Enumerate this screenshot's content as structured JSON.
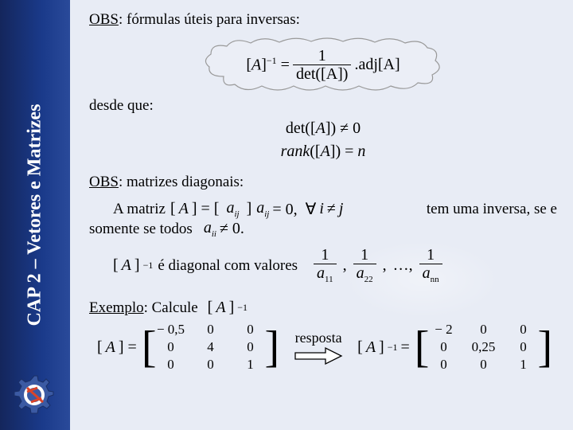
{
  "sidebar": {
    "title": "CAP 2 – Vetores e Matrizes"
  },
  "text": {
    "obs1_prefix": "OBS",
    "obs1_rest": ": fórmulas úteis para inversas:",
    "desde_que": "desde que:",
    "obs2_prefix": "OBS",
    "obs2_rest": ": matrizes diagonais:",
    "a_matriz": "A matriz",
    "tem_uma_inversa": "tem uma inversa, se e",
    "somente_se_todos": "somente se todos",
    "e_diagonal": "é diagonal com valores",
    "exemplo_prefix": "Exemplo",
    "exemplo_rest": ":  Calcule",
    "resposta": "resposta"
  },
  "formulas": {
    "main_inverse": {
      "lhs": "[A]⁻¹",
      "num": "1",
      "den": "det([A])",
      "rhs": ".adj[A]"
    },
    "cond1": "det([A]) ≠ 0",
    "cond2": "rank([A]) = n",
    "A_def": {
      "lhs": "[A] =",
      "body": "aᵢⱼ"
    },
    "off_diag": "aᵢⱼ = 0,  ∀ i ≠ j",
    "nonzero": "aᵢᵢ ≠ 0.",
    "inv_label": "[A]⁻¹",
    "diag_values": {
      "terms": [
        "1/a₁₁",
        "1/a₂₂",
        "…",
        "1/aₙₙ"
      ],
      "a11": "a",
      "a11_sub": "11",
      "a22": "a",
      "a22_sub": "22",
      "ann": "a",
      "ann_sub": "nn"
    },
    "calc_target": "[A]⁻¹",
    "A_matrix": {
      "rows": [
        [
          "− 0,5",
          "0",
          "0"
        ],
        [
          "0",
          "4",
          "0"
        ],
        [
          "0",
          "0",
          "1"
        ]
      ]
    },
    "A_inv_matrix": {
      "rows": [
        [
          "− 2",
          "0",
          "0"
        ],
        [
          "0",
          "0,25",
          "0"
        ],
        [
          "0",
          "0",
          "1"
        ]
      ]
    }
  },
  "style": {
    "sidebar_gradient_from": "#14265c",
    "sidebar_gradient_to": "#2a4a9a",
    "background": "#e8ecf5",
    "text_color": "#000000",
    "sidebar_text_color": "#ffffff",
    "font_family": "Times New Roman",
    "title_fontsize_pt": 18,
    "body_fontsize_pt": 14,
    "arrow_fill": "#ffffff",
    "arrow_stroke": "#000000",
    "cloud_stroke": "#888888",
    "logo_colors": {
      "gear": "#3b5aa3",
      "ring": "#ffffff",
      "bolt": "#d9442a"
    }
  }
}
